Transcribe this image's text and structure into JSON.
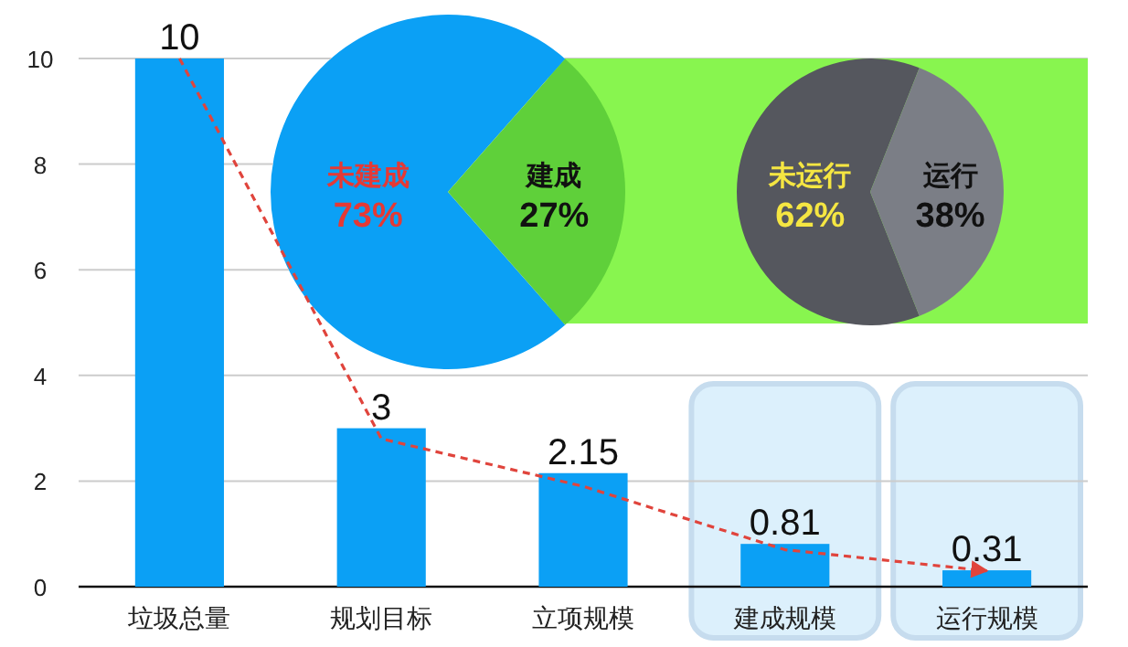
{
  "chart_data": [
    {
      "type": "bar",
      "categories": [
        "垃圾总量",
        "规划目标",
        "立项规模",
        "建成规模",
        "运行规模"
      ],
      "series": [
        {
          "type": "bar",
          "color": "#0ba0f5",
          "values": [
            10,
            3,
            2.15,
            0.81,
            0.31
          ],
          "value_labels": [
            "10",
            "3",
            "2.15",
            "0.81",
            "0.31"
          ]
        },
        {
          "type": "line",
          "color": "#e0443c",
          "values": [
            10,
            2.8,
            1.9,
            0.7,
            0.3
          ],
          "line_style": "dashed",
          "marker": "none"
        }
      ],
      "ylim": [
        0,
        10
      ],
      "yticks": [
        0,
        2,
        4,
        6,
        8,
        10
      ],
      "grid": "y",
      "bands": [
        {
          "axis": "x",
          "from": "建成规模",
          "to": "建成规模",
          "color": "#dcf0fc"
        },
        {
          "axis": "x",
          "from": "运行规模",
          "to": "运行规模",
          "color": "#dcf0fc"
        }
      ]
    },
    {
      "type": "pie",
      "categories": [
        "未建成",
        "建成"
      ],
      "values": [
        73,
        27
      ],
      "colors": [
        "#0ba0f5",
        "#5fd03a"
      ],
      "value_labels": [
        "73%",
        "27%"
      ]
    },
    {
      "type": "pie",
      "categories": [
        "未运行",
        "运行"
      ],
      "values": [
        62,
        38
      ],
      "colors": [
        "#55575e",
        "#7b7e86"
      ],
      "value_labels": [
        "62%",
        "38%"
      ]
    }
  ]
}
